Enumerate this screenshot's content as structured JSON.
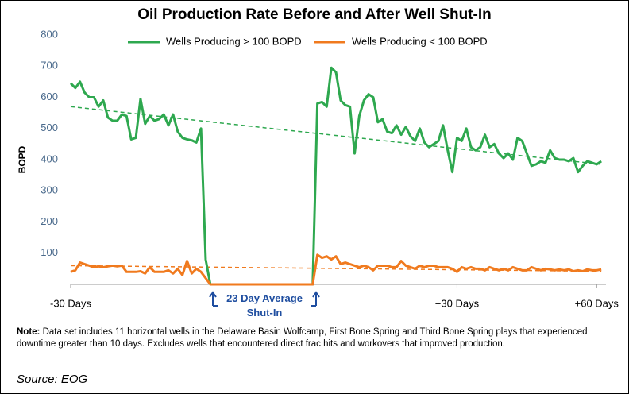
{
  "chart_data": {
    "type": "line",
    "title": "Oil Production Rate Before and After Well Shut-In",
    "y_label": "BOPD",
    "annotation": "23 Day Average Shut-In",
    "x": [
      0,
      1,
      2,
      3,
      4,
      5,
      6,
      7,
      8,
      9,
      10,
      11,
      12,
      13,
      14,
      15,
      16,
      17,
      18,
      19,
      20,
      21,
      22,
      23,
      24,
      25,
      26,
      27,
      28,
      29,
      30,
      31,
      32,
      33,
      34,
      35,
      36,
      37,
      38,
      39,
      40,
      41,
      42,
      43,
      44,
      45,
      46,
      47,
      48,
      49,
      50,
      51,
      52,
      53,
      54,
      55,
      56,
      57,
      58,
      59,
      60,
      61,
      62,
      63,
      64,
      65,
      66,
      67,
      68,
      69,
      70,
      71,
      72,
      73,
      74,
      75,
      76,
      77,
      78,
      79,
      80,
      81,
      82,
      83,
      84,
      85,
      86,
      87,
      88,
      89,
      90,
      91,
      92,
      93,
      94,
      95,
      96,
      97,
      98,
      99,
      100,
      101,
      102,
      103,
      104,
      105,
      106,
      107,
      108,
      109,
      110,
      111,
      112,
      113,
      114
    ],
    "series": [
      {
        "name": "Wells Producing > 100 BOPD",
        "color": "#2ea84f",
        "values": [
          645,
          630,
          650,
          615,
          600,
          600,
          570,
          590,
          535,
          525,
          525,
          545,
          540,
          465,
          470,
          595,
          515,
          540,
          525,
          530,
          545,
          510,
          545,
          490,
          470,
          465,
          462,
          455,
          500,
          80,
          0,
          0,
          0,
          0,
          0,
          0,
          0,
          0,
          0,
          0,
          0,
          0,
          0,
          0,
          0,
          0,
          0,
          0,
          0,
          0,
          0,
          0,
          0,
          580,
          585,
          570,
          695,
          680,
          590,
          575,
          570,
          420,
          540,
          590,
          610,
          600,
          520,
          530,
          490,
          485,
          510,
          480,
          505,
          475,
          460,
          500,
          455,
          440,
          450,
          460,
          510,
          430,
          360,
          470,
          460,
          500,
          440,
          430,
          440,
          480,
          440,
          450,
          420,
          405,
          420,
          400,
          470,
          460,
          420,
          380,
          385,
          395,
          390,
          430,
          405,
          400,
          400,
          395,
          405,
          360,
          380,
          395,
          390,
          385,
          395
        ]
      },
      {
        "name": "Wells Producing < 100 BOPD",
        "color": "#f07a1e",
        "values": [
          40,
          45,
          70,
          65,
          60,
          55,
          58,
          55,
          58,
          60,
          58,
          60,
          40,
          40,
          40,
          42,
          35,
          55,
          40,
          40,
          40,
          45,
          35,
          50,
          30,
          75,
          35,
          50,
          40,
          20,
          0,
          0,
          0,
          0,
          0,
          0,
          0,
          0,
          0,
          0,
          0,
          0,
          0,
          0,
          0,
          0,
          0,
          0,
          0,
          0,
          0,
          0,
          0,
          95,
          85,
          90,
          80,
          90,
          65,
          70,
          65,
          60,
          55,
          60,
          55,
          45,
          60,
          60,
          60,
          55,
          55,
          75,
          60,
          55,
          50,
          60,
          55,
          60,
          60,
          55,
          55,
          55,
          50,
          40,
          55,
          50,
          55,
          50,
          50,
          45,
          55,
          50,
          45,
          50,
          45,
          55,
          50,
          45,
          45,
          55,
          50,
          45,
          50,
          48,
          45,
          48,
          45,
          48,
          42,
          45,
          42,
          48,
          45,
          45,
          48
        ]
      }
    ],
    "trendlines": [
      {
        "color": "#2ea84f",
        "x": [
          0,
          114
        ],
        "values": [
          570,
          385
        ]
      },
      {
        "color": "#f07a1e",
        "x": [
          0,
          114
        ],
        "values": [
          60,
          42
        ]
      }
    ],
    "xlim": [
      0,
      115
    ],
    "xticks": [
      {
        "value": 0,
        "label": "-30 Days"
      },
      {
        "value": 83,
        "label": "+30 Days"
      },
      {
        "value": 113,
        "label": "+60 Days"
      }
    ],
    "ylim": [
      0,
      800
    ],
    "yticks": [
      100,
      200,
      300,
      400,
      500,
      600,
      700,
      800
    ],
    "grid": false,
    "legend": "top"
  },
  "note": {
    "label": "Note:",
    "text": "Data set includes 11 horizontal wells in the Delaware Basin Wolfcamp, First Bone Spring and Third Bone Spring plays that experienced downtime greater than 10 days. Excludes wells that encountered direct frac hits and workovers that improved production."
  },
  "source": "Source: EOG"
}
